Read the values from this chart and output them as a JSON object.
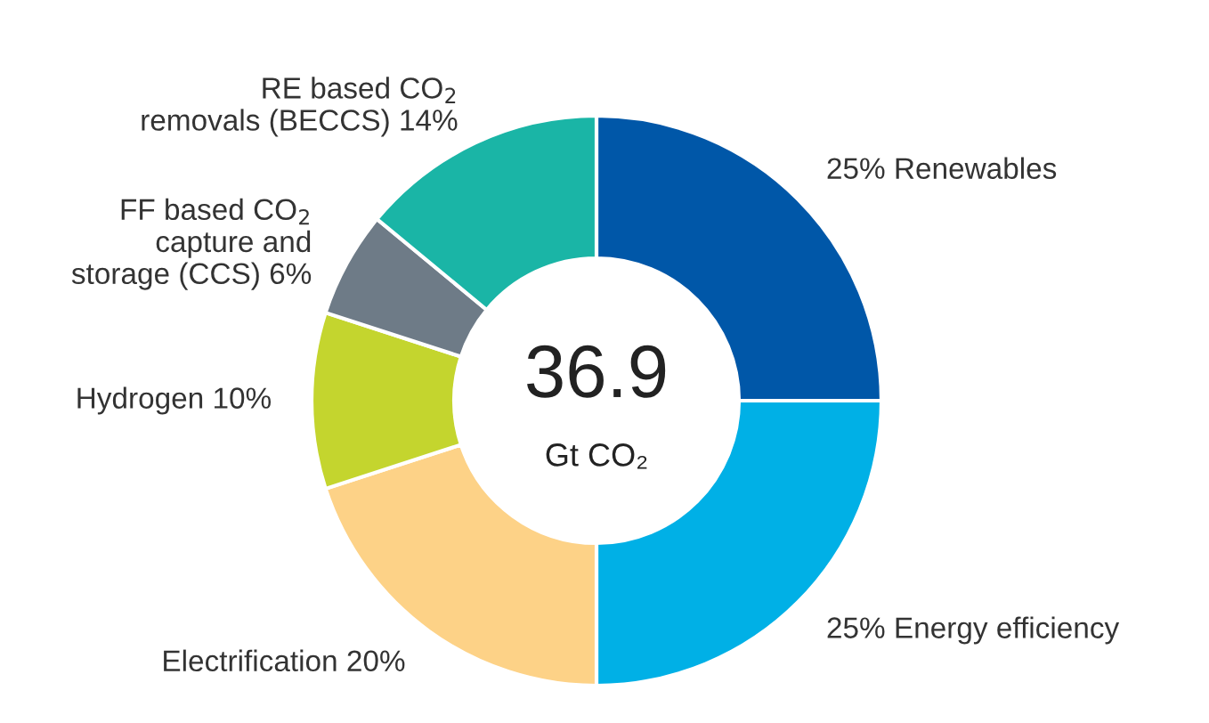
{
  "chart_data": {
    "type": "donut",
    "categories": [
      "Renewables",
      "Energy efficiency",
      "Electrification",
      "Hydrogen",
      "FF based CO$_{2}$\ncapture and\nstorage (CCS)",
      "RE based CO$_{2}$\nremovals (BECCS)"
    ],
    "values": [
      25,
      25,
      20,
      10,
      6,
      14
    ],
    "value_labels": [
      "25%",
      "25%",
      "20%",
      "10%",
      "6%",
      "14%"
    ],
    "colors": [
      "#0057a8",
      "#00b0e6",
      "#fdd287",
      "#c4d52e",
      "#6e7b87",
      "#1ab5a6"
    ],
    "annotations": [
      "36.9",
      "Gt CO₂"
    ],
    "legend": false
  }
}
